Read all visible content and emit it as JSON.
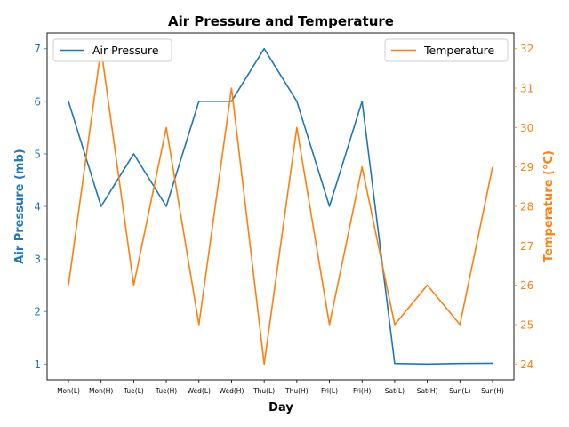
{
  "chart_data": {
    "type": "line",
    "title": "Air Pressure and Temperature",
    "xlabel": "Day",
    "ylabel_left": "Air Pressure (mb)",
    "ylabel_right": "Temperature (°C)",
    "categories": [
      "Mon(L)",
      "Mon(H)",
      "Tue(L)",
      "Tue(H)",
      "Wed(L)",
      "Wed(H)",
      "Thu(L)",
      "Thu(H)",
      "Fri(L)",
      "Fri(H)",
      "Sat(L)",
      "Sat(H)",
      "Sun(L)",
      "Sun(H)"
    ],
    "series": [
      {
        "name": "Air Pressure",
        "axis": "left",
        "color": "#1f77b4",
        "values": [
          6,
          4,
          5,
          4,
          6,
          6,
          7,
          6,
          4,
          6,
          1.01,
          1.0,
          1.01,
          1.015
        ]
      },
      {
        "name": "Temperature",
        "axis": "right",
        "color": "#ff7f0e",
        "values": [
          26,
          32,
          26,
          30,
          25,
          31,
          24,
          30,
          25,
          29,
          25,
          26,
          25,
          29
        ]
      }
    ],
    "ylim_left": [
      0.7,
      7.3
    ],
    "ylim_right": [
      23.6,
      32.4
    ],
    "yticks_left": [
      1,
      2,
      3,
      4,
      5,
      6,
      7
    ],
    "yticks_right": [
      24,
      25,
      26,
      27,
      28,
      29,
      30,
      31,
      32
    ],
    "legend_left": "top-left",
    "legend_right": "top-right",
    "grid": false
  }
}
